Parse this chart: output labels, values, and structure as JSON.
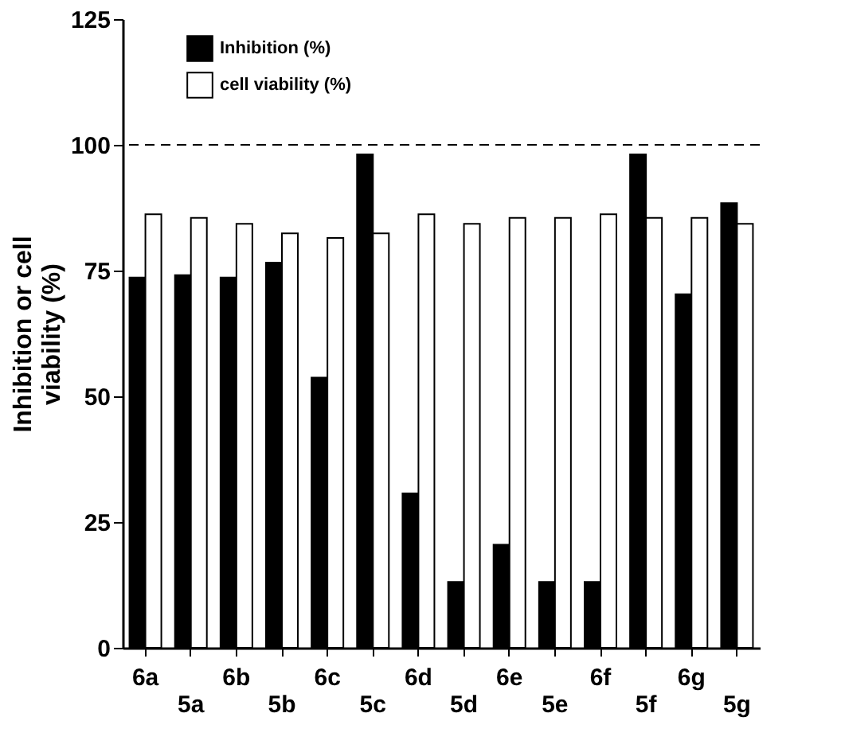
{
  "chart_data": {
    "type": "bar",
    "ylabel": "Inhibition or cell viability (%)",
    "categories": [
      "6a",
      "5a",
      "6b",
      "5b",
      "6c",
      "5c",
      "6d",
      "5d",
      "6e",
      "5e",
      "6f",
      "5f",
      "6g",
      "5g"
    ],
    "series": [
      {
        "name": "Inhibition  (%)",
        "color": "#000000",
        "values": [
          73.6,
          74.1,
          73.6,
          76.6,
          53.7,
          98.1,
          30.7,
          13.1,
          20.5,
          13.1,
          13.1,
          98.1,
          70.3,
          88.4
        ]
      },
      {
        "name": "cell viability (%)",
        "color": "#ffffff",
        "values": [
          86.2,
          85.5,
          84.3,
          82.4,
          81.5,
          82.4,
          86.2,
          84.3,
          85.5,
          85.5,
          86.2,
          85.5,
          85.5,
          84.3
        ]
      }
    ],
    "ylim": [
      0,
      125
    ],
    "yticks": [
      0,
      25,
      50,
      75,
      100,
      125
    ],
    "grid": false,
    "legend": "top left",
    "ref_lines": [
      {
        "axis": "y",
        "value": 100,
        "line_style": "dashed"
      }
    ]
  }
}
